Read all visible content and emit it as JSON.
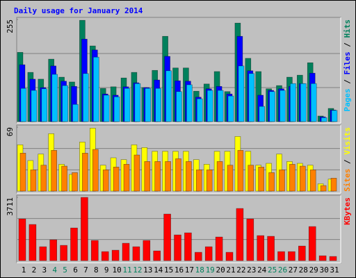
{
  "title": "Daily usage for January 2014",
  "legend_separator": " / ",
  "chart_data": [
    {
      "type": "bar",
      "ylim": [
        0,
        255
      ],
      "yticks": [
        255
      ],
      "grid_divisions": 3,
      "series": [
        {
          "name": "Hits",
          "color": "#00805c",
          "values": [
            173,
            123,
            106,
            156,
            111,
            99,
            253,
            189,
            83,
            87,
            109,
            123,
            85,
            128,
            213,
            134,
            134,
            76,
            94,
            125,
            75,
            246,
            158,
            125,
            82,
            90,
            111,
            116,
            147,
            14,
            33
          ]
        },
        {
          "name": "Files",
          "color": "#0000ff",
          "values": [
            142,
            106,
            85,
            139,
            101,
            88,
            206,
            179,
            69,
            66,
            87,
            97,
            85,
            104,
            163,
            102,
            101,
            61,
            82,
            88,
            69,
            213,
            127,
            66,
            78,
            82,
            88,
            95,
            121,
            12,
            29
          ]
        },
        {
          "name": "Pages",
          "color": "#00c0ff",
          "values": [
            83,
            78,
            82,
            118,
            90,
            43,
            120,
            161,
            66,
            62,
            83,
            95,
            83,
            83,
            127,
            75,
            92,
            57,
            78,
            78,
            64,
            139,
            120,
            38,
            75,
            78,
            95,
            95,
            95,
            10,
            28
          ]
        }
      ]
    },
    {
      "type": "bar",
      "ylim": [
        0,
        69
      ],
      "yticks": [
        69
      ],
      "grid_divisions": 3,
      "series": [
        {
          "name": "Visits",
          "color": "#ffff00",
          "values": [
            50,
            33,
            40,
            62,
            29,
            18,
            53,
            68,
            28,
            36,
            34,
            50,
            47,
            43,
            43,
            43,
            43,
            34,
            29,
            43,
            43,
            59,
            43,
            28,
            30,
            40,
            32,
            30,
            28,
            8,
            13
          ]
        },
        {
          "name": "Sites",
          "color": "#ff8000",
          "values": [
            41,
            23,
            28,
            44,
            27,
            20,
            41,
            45,
            23,
            26,
            29,
            39,
            32,
            32,
            32,
            35,
            32,
            23,
            23,
            32,
            28,
            44,
            28,
            26,
            20,
            23,
            29,
            27,
            23,
            6,
            14
          ]
        }
      ]
    },
    {
      "type": "bar",
      "ylim": [
        0,
        3711
      ],
      "yticks": [
        3711
      ],
      "grid_divisions": 3,
      "categories": [
        "1",
        "2",
        "3",
        "4",
        "5",
        "6",
        "7",
        "8",
        "9",
        "10",
        "11",
        "12",
        "13",
        "14",
        "15",
        "16",
        "17",
        "18",
        "19",
        "20",
        "21",
        "22",
        "23",
        "24",
        "25",
        "26",
        "27",
        "28",
        "29",
        "30",
        "31"
      ],
      "category_colors": [
        "#000000",
        "#000000",
        "#000000",
        "#00805c",
        "#00805c",
        "#000000",
        "#000000",
        "#000000",
        "#000000",
        "#000000",
        "#00805c",
        "#00805c",
        "#000000",
        "#000000",
        "#000000",
        "#000000",
        "#000000",
        "#00805c",
        "#00805c",
        "#000000",
        "#000000",
        "#000000",
        "#000000",
        "#000000",
        "#00805c",
        "#00805c",
        "#000000",
        "#000000",
        "#000000",
        "#000000",
        "#000000"
      ],
      "series": [
        {
          "name": "KBytes",
          "color": "#ff0000",
          "values": [
            2448,
            2122,
            816,
            1224,
            897,
            1917,
            3711,
            1183,
            530,
            612,
            1020,
            816,
            1183,
            571,
            2733,
            1510,
            1632,
            490,
            816,
            1387,
            490,
            3060,
            2448,
            1469,
            1428,
            530,
            530,
            857,
            1999,
            286,
            245
          ]
        }
      ]
    }
  ]
}
